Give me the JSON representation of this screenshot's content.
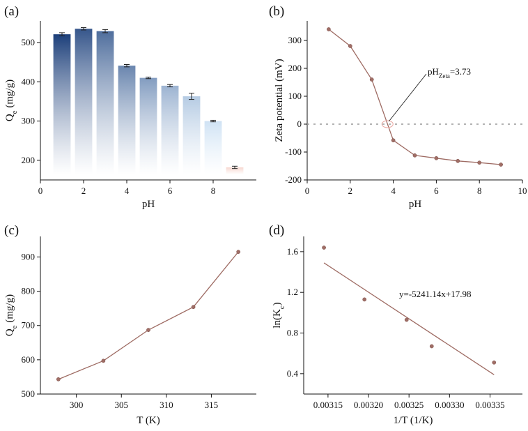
{
  "colors": {
    "series_line": "#9e6b63",
    "series_point": "#a06e66",
    "bar_top": "#1c3f7a",
    "bar_last": "#f7d7cf",
    "zero_line": "#999999"
  },
  "chart_data": [
    {
      "panel": "(a)",
      "type": "bar",
      "xlabel": "pH",
      "ylabel": "Q",
      "ylabel_sub": "e",
      "ylabel_unit": " (mg/g)",
      "x": [
        1,
        2,
        3,
        4,
        5,
        6,
        7,
        8,
        9
      ],
      "values": [
        521,
        535,
        529,
        441,
        410,
        390,
        363,
        300,
        182
      ],
      "errors": [
        4,
        3,
        4,
        3,
        2,
        3,
        8,
        2,
        3
      ],
      "xlim": [
        0,
        10
      ],
      "ylim": [
        150,
        555
      ],
      "xticks": [
        0,
        2,
        4,
        6,
        8
      ],
      "yticks": [
        200,
        300,
        400,
        500
      ]
    },
    {
      "panel": "(b)",
      "type": "line",
      "xlabel": "pH",
      "ylabel": "Zeta potential (mV)",
      "x": [
        1,
        2,
        3,
        4,
        5,
        6,
        7,
        8,
        9
      ],
      "y": [
        340,
        280,
        160,
        -58,
        -112,
        -122,
        -132,
        -138,
        -145
      ],
      "xlim": [
        0,
        10
      ],
      "ylim": [
        -200,
        370
      ],
      "xticks": [
        0,
        2,
        4,
        6,
        8,
        10
      ],
      "yticks": [
        -200,
        -100,
        0,
        100,
        200,
        300
      ],
      "zero_line": 0,
      "annotation": {
        "text_main": "pH",
        "text_sub": "Zeta",
        "text_value": "=3.73",
        "x": 3.73,
        "y": 0
      }
    },
    {
      "panel": "(c)",
      "type": "line",
      "xlabel": "T (K)",
      "ylabel": "Q",
      "ylabel_sub": "e",
      "ylabel_unit": " (mg/g)",
      "x": [
        298,
        303,
        308,
        313,
        318
      ],
      "y": [
        543,
        597,
        687,
        754,
        915
      ],
      "xlim": [
        296,
        320
      ],
      "ylim": [
        500,
        960
      ],
      "xticks": [
        300,
        305,
        310,
        315
      ],
      "yticks": [
        500,
        600,
        700,
        800,
        900
      ]
    },
    {
      "panel": "(d)",
      "type": "scatter",
      "xlabel": "1/T (1/K)",
      "ylabel": "ln(K",
      "ylabel_sub": "c",
      "ylabel_unit": ")",
      "x": [
        0.003145,
        0.003195,
        0.003247,
        0.003278,
        0.003355
      ],
      "y": [
        1.64,
        1.13,
        0.93,
        0.67,
        0.51
      ],
      "fit": {
        "equation": "y=-5241.14x+17.98",
        "x0": 0.003145,
        "y0": 1.49,
        "x1": 0.003355,
        "y1": 0.39
      },
      "xlim": [
        0.00312,
        0.00339
      ],
      "ylim": [
        0.2,
        1.75
      ],
      "xticks": [
        0.00315,
        0.0032,
        0.00325,
        0.0033,
        0.00335
      ],
      "xtick_labels": [
        "0.00315",
        "0.00320",
        "0.00325",
        "0.00330",
        "0.00335"
      ],
      "yticks": [
        0.4,
        0.8,
        1.2,
        1.6
      ],
      "ytick_labels": [
        "0.4",
        "0.8",
        "1.2",
        "1.6"
      ]
    }
  ]
}
